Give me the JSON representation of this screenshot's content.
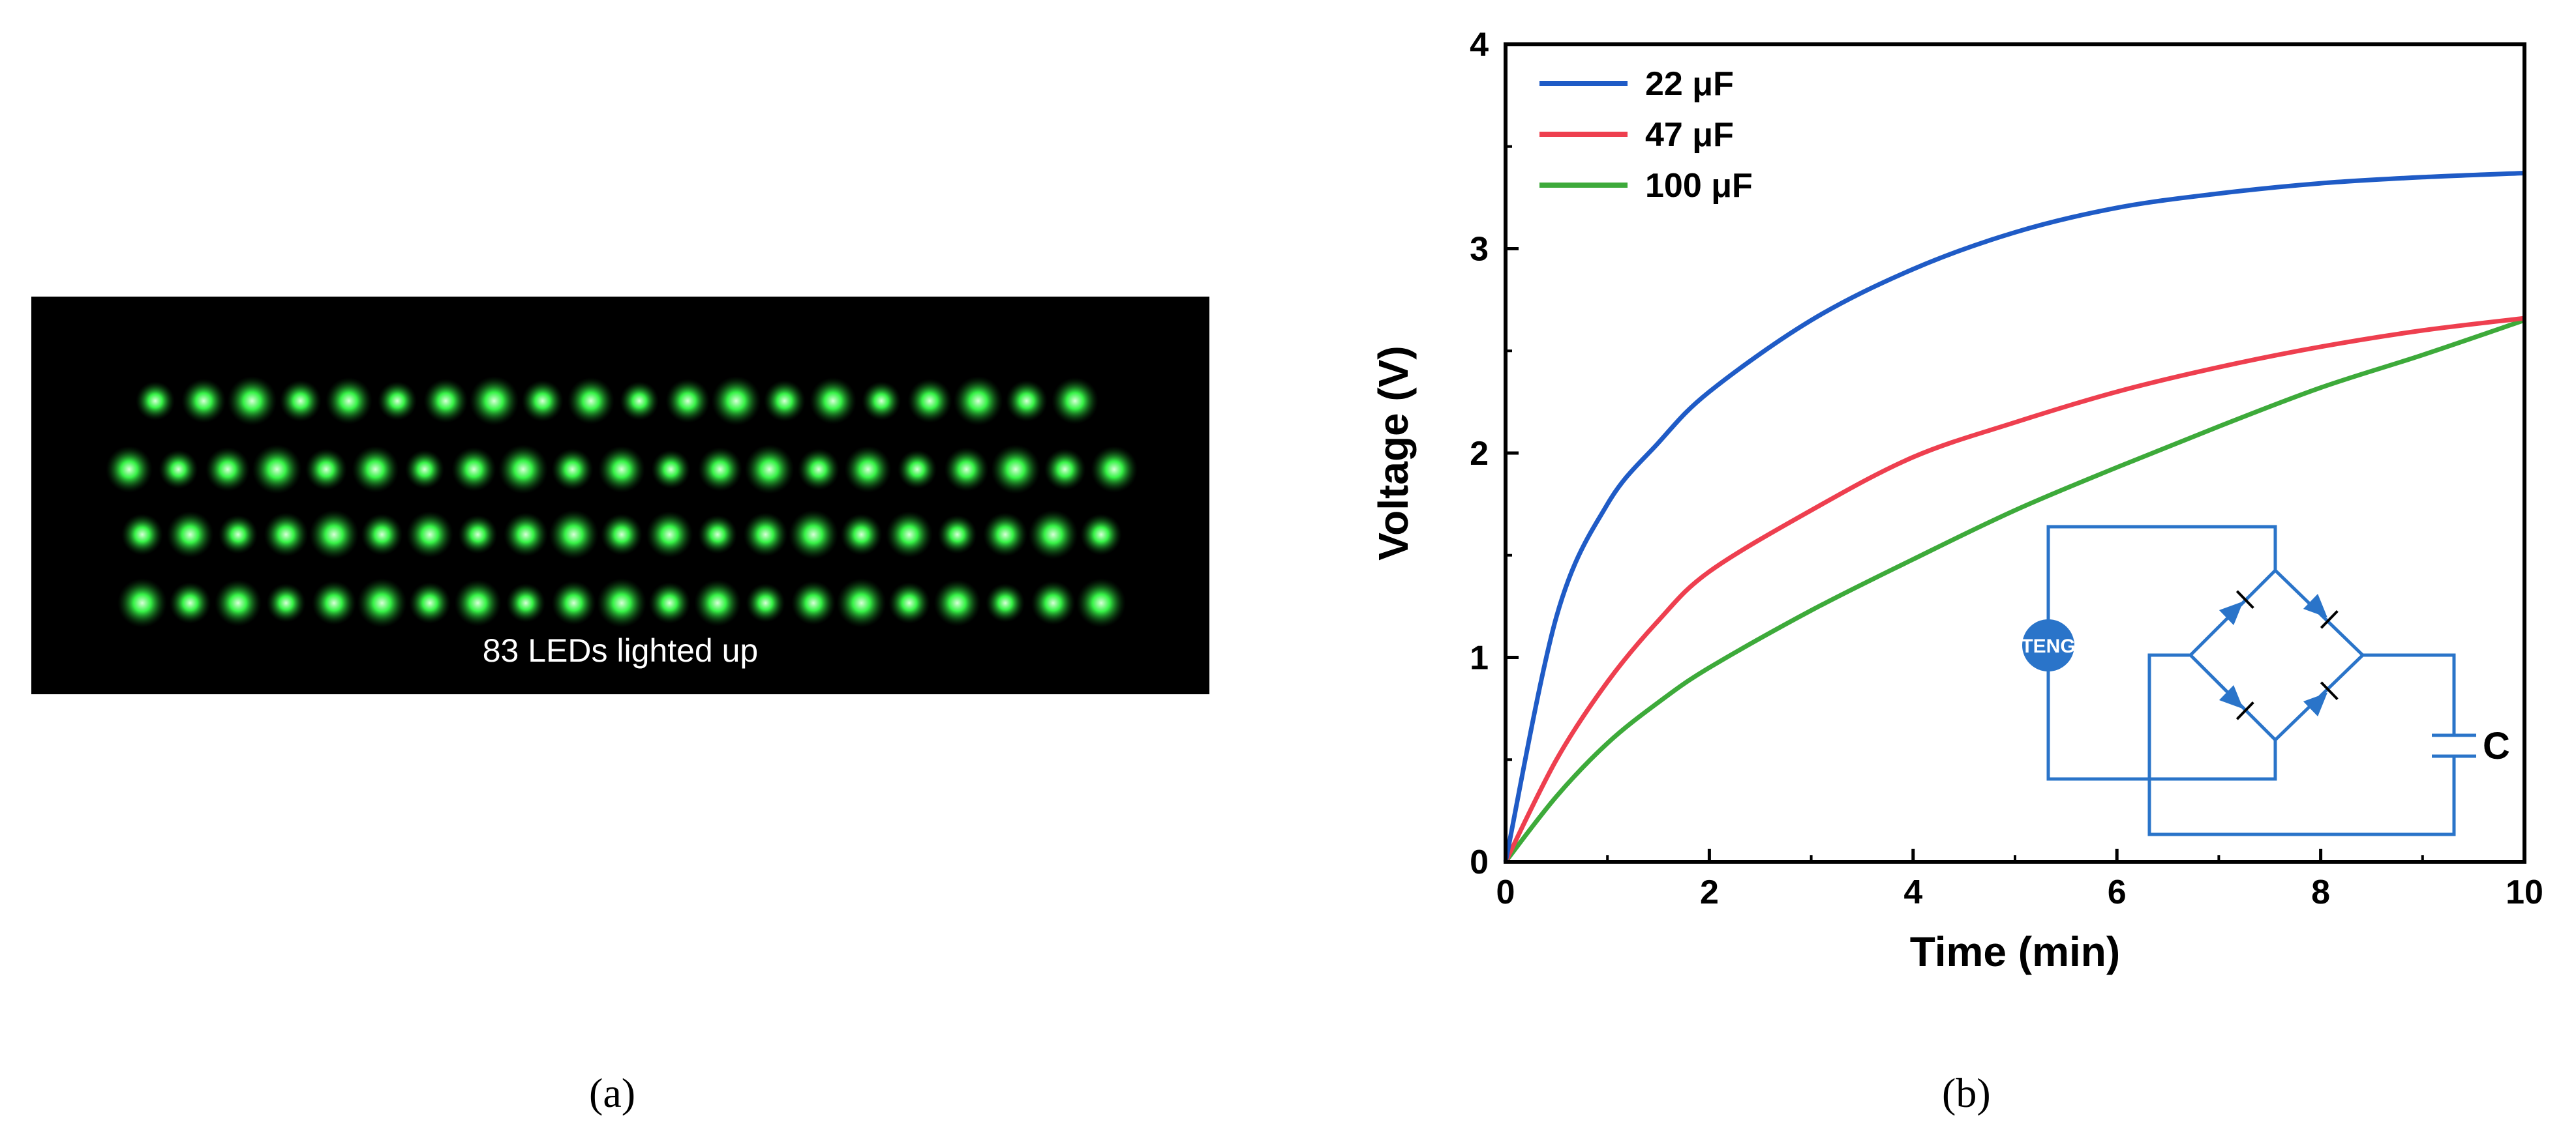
{
  "panel_a": {
    "caption": "83 LEDs lighted up",
    "label": "(a)",
    "led_count": 83,
    "led_color": "#39ff4a"
  },
  "panel_b": {
    "label": "(b)"
  },
  "chart_data": {
    "type": "line",
    "title": "",
    "xlabel": "Time (min)",
    "ylabel": "Voltage (V)",
    "xlim": [
      0,
      10
    ],
    "ylim": [
      0,
      4
    ],
    "xticks": [
      0,
      2,
      4,
      6,
      8,
      10
    ],
    "yticks": [
      0,
      1,
      2,
      3,
      4
    ],
    "grid": false,
    "legend_position": "top-left",
    "x": [
      0,
      0.5,
      1,
      1.5,
      2,
      3,
      4,
      5,
      6,
      7,
      8,
      9,
      10
    ],
    "series": [
      {
        "name": "22 μF",
        "color": "#1f5bc6",
        "values": [
          0,
          1.2,
          1.75,
          2.05,
          2.3,
          2.65,
          2.9,
          3.08,
          3.2,
          3.27,
          3.32,
          3.35,
          3.37
        ]
      },
      {
        "name": "47 μF",
        "color": "#ee3f4f",
        "values": [
          0,
          0.5,
          0.88,
          1.18,
          1.42,
          1.72,
          1.98,
          2.15,
          2.3,
          2.42,
          2.52,
          2.6,
          2.66
        ]
      },
      {
        "name": "100 μF",
        "color": "#3daa3a",
        "values": [
          0,
          0.32,
          0.58,
          0.78,
          0.95,
          1.23,
          1.48,
          1.72,
          1.93,
          2.13,
          2.32,
          2.48,
          2.65
        ]
      }
    ],
    "inset": {
      "source_label": "TENG",
      "capacitor_label": "C",
      "color": "#2a74c9"
    }
  }
}
